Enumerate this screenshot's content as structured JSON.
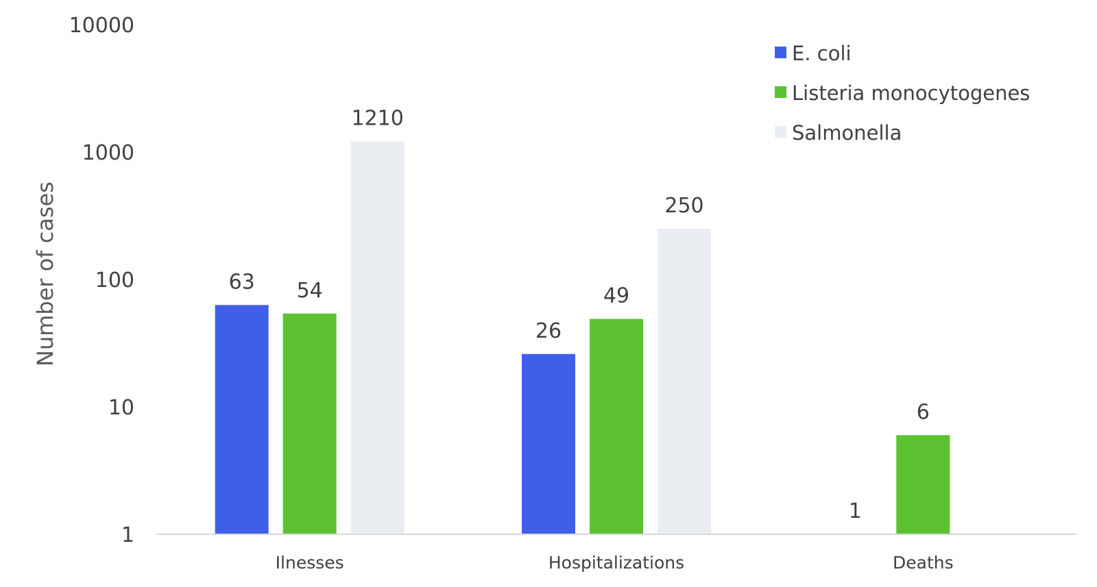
{
  "chart_data": {
    "type": "bar",
    "categories": [
      "Ilnesses",
      "Hospitalizations",
      "Deaths"
    ],
    "series": [
      {
        "name": "E. coli",
        "color": "#3f5fea",
        "values": [
          63,
          26,
          1
        ]
      },
      {
        "name": "Listeria monocytogenes",
        "color": "#5cc232",
        "values": [
          54,
          49,
          6
        ]
      },
      {
        "name": "Salmonella",
        "color": "#eaeef3",
        "values": [
          1210,
          250,
          null
        ]
      }
    ],
    "data_labels": [
      [
        "63",
        "26",
        "1"
      ],
      [
        "54",
        "49",
        "6"
      ],
      [
        "1210",
        "250",
        ""
      ]
    ],
    "ylabel": "Number of cases",
    "xlabel": "",
    "title": "",
    "y_scale": "log",
    "ylim": [
      1,
      10000
    ],
    "y_ticks": [
      1,
      10,
      100,
      1000,
      10000
    ],
    "y_tick_labels": [
      "1",
      "10",
      "100",
      "1000",
      "10000"
    ],
    "grid": false,
    "legend_position": "top-right",
    "axis_color": "#d9d9d9"
  }
}
